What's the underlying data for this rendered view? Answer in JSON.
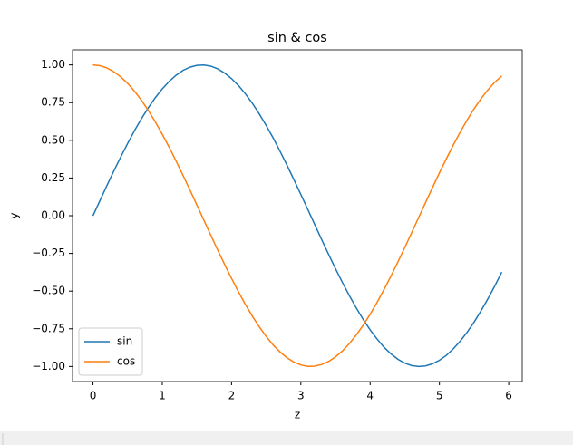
{
  "chart_data": {
    "type": "line",
    "title": "sin & cos",
    "xlabel": "z",
    "ylabel": "y",
    "x": [
      0,
      0.1,
      0.2,
      0.3,
      0.4,
      0.5,
      0.6,
      0.7,
      0.8,
      0.9,
      1.0,
      1.1,
      1.2,
      1.3,
      1.4,
      1.5,
      1.6,
      1.7,
      1.8,
      1.9,
      2.0,
      2.1,
      2.2,
      2.3,
      2.4,
      2.5,
      2.6,
      2.7,
      2.8,
      2.9,
      3.0,
      3.1,
      3.2,
      3.3,
      3.4,
      3.5,
      3.6,
      3.7,
      3.8,
      3.9,
      4.0,
      4.1,
      4.2,
      4.3,
      4.4,
      4.5,
      4.6,
      4.7,
      4.8,
      4.9,
      5.0,
      5.1,
      5.2,
      5.3,
      5.4,
      5.5,
      5.6,
      5.7,
      5.8,
      5.9
    ],
    "series": [
      {
        "name": "sin",
        "color": "#1f77b4",
        "values": [
          0,
          0.0998,
          0.199,
          0.296,
          0.389,
          0.479,
          0.565,
          0.644,
          0.717,
          0.783,
          0.841,
          0.891,
          0.932,
          0.964,
          0.985,
          0.997,
          0.9996,
          0.992,
          0.974,
          0.946,
          0.909,
          0.863,
          0.808,
          0.746,
          0.675,
          0.598,
          0.516,
          0.427,
          0.335,
          0.239,
          0.141,
          0.0416,
          -0.0584,
          -0.158,
          -0.256,
          -0.351,
          -0.443,
          -0.53,
          -0.612,
          -0.688,
          -0.757,
          -0.818,
          -0.872,
          -0.916,
          -0.952,
          -0.978,
          -0.994,
          -1.0,
          -0.996,
          -0.982,
          -0.959,
          -0.926,
          -0.883,
          -0.832,
          -0.773,
          -0.706,
          -0.631,
          -0.551,
          -0.465,
          -0.374
        ]
      },
      {
        "name": "cos",
        "color": "#ff7f0e",
        "values": [
          1,
          0.995,
          0.98,
          0.955,
          0.921,
          0.878,
          0.825,
          0.765,
          0.697,
          0.622,
          0.54,
          0.454,
          0.362,
          0.267,
          0.17,
          0.0707,
          -0.0292,
          -0.129,
          -0.227,
          -0.323,
          -0.416,
          -0.505,
          -0.589,
          -0.666,
          -0.737,
          -0.801,
          -0.857,
          -0.904,
          -0.942,
          -0.971,
          -0.99,
          -0.9991,
          -0.998,
          -0.987,
          -0.967,
          -0.936,
          -0.897,
          -0.848,
          -0.791,
          -0.726,
          -0.654,
          -0.575,
          -0.49,
          -0.401,
          -0.307,
          -0.211,
          -0.112,
          -0.0124,
          0.0875,
          0.187,
          0.284,
          0.378,
          0.469,
          0.554,
          0.635,
          0.709,
          0.776,
          0.835,
          0.886,
          0.927
        ]
      }
    ],
    "xlim": [
      -0.295,
      6.195
    ],
    "xticks": [
      0,
      1,
      2,
      3,
      4,
      5,
      6
    ],
    "ylim": [
      -1.1,
      1.1
    ],
    "yticks": [
      {
        "value": -1,
        "label": "−1.00"
      },
      {
        "value": -0.75,
        "label": "−0.75"
      },
      {
        "value": -0.5,
        "label": "−0.50"
      },
      {
        "value": -0.25,
        "label": "−0.25"
      },
      {
        "value": 0,
        "label": "0.00"
      },
      {
        "value": 0.25,
        "label": "0.25"
      },
      {
        "value": 0.5,
        "label": "0.50"
      },
      {
        "value": 0.75,
        "label": "0.75"
      },
      {
        "value": 1,
        "label": "1.00"
      }
    ],
    "grid": false,
    "legend": "lower left"
  }
}
